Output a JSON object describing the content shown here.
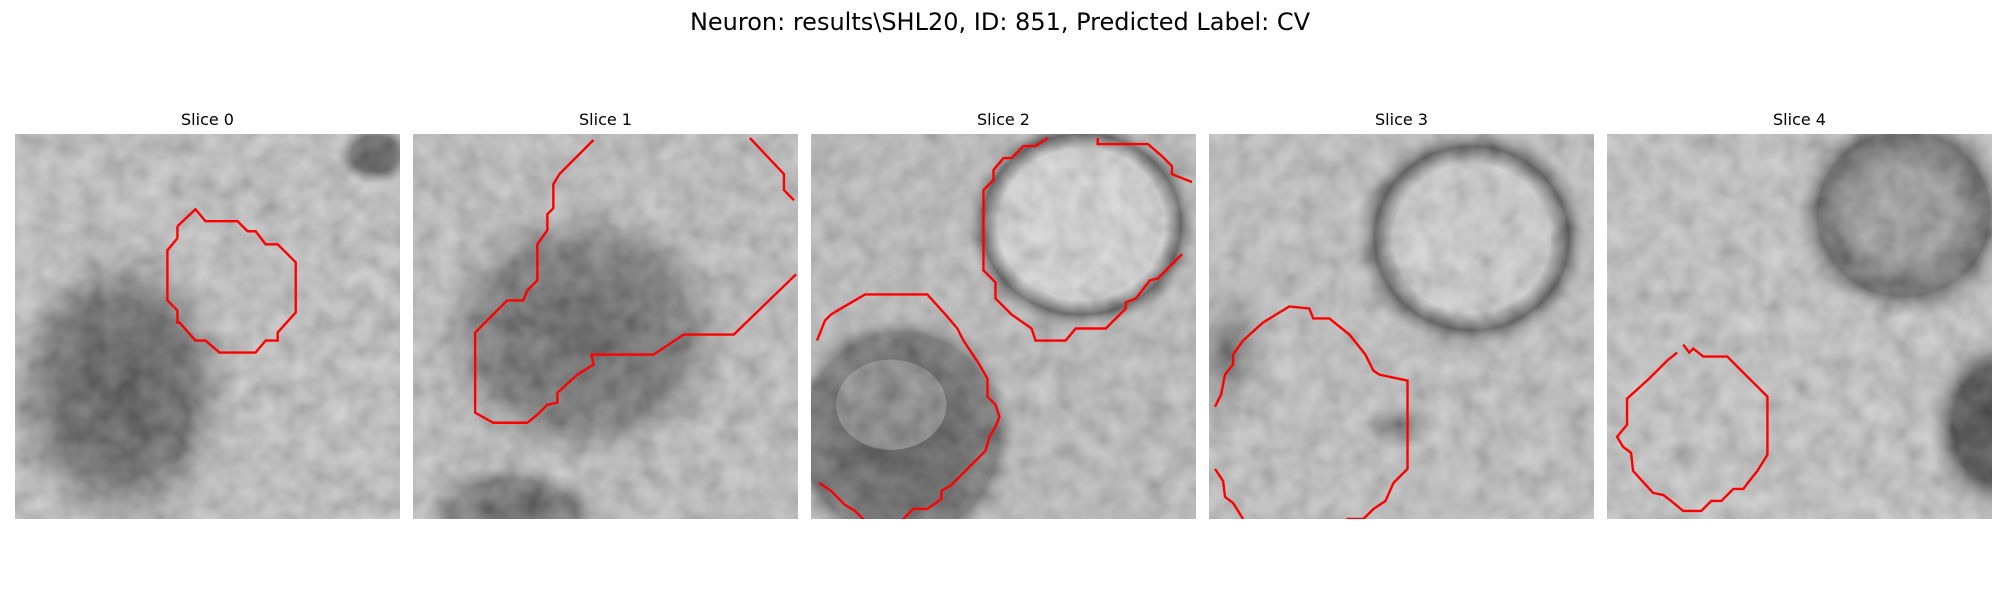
{
  "figure": {
    "title": "Neuron: results\\SHL20, ID: 851, Predicted Label: CV"
  },
  "panels": [
    {
      "title": "Slice 0"
    },
    {
      "title": "Slice 1"
    },
    {
      "title": "Slice 2"
    },
    {
      "title": "Slice 3"
    },
    {
      "title": "Slice 4"
    }
  ],
  "colors": {
    "contour": "#ff0000",
    "background": "#ffffff"
  }
}
